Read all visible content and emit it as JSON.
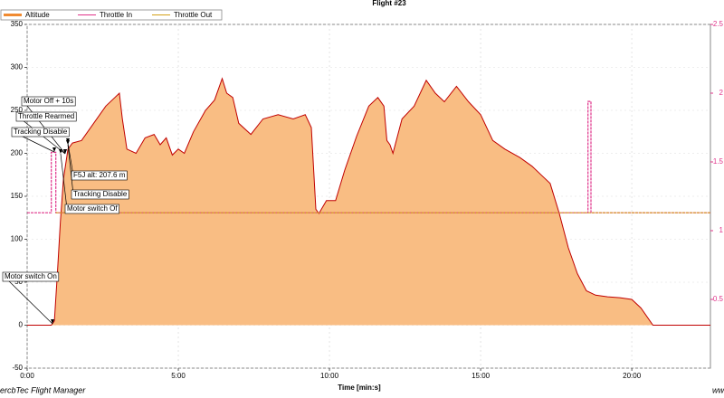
{
  "chart_data": {
    "type": "line",
    "title": "Flight #23",
    "xlabel": "Time [min:s]",
    "footer_left": "ercbTec Flight Manager",
    "footer_right": "ww",
    "xlim": [
      0,
      22.6
    ],
    "xticks": [
      {
        "value": 0,
        "label": "0:00"
      },
      {
        "value": 5,
        "label": "5:00"
      },
      {
        "value": 10,
        "label": "10:00"
      },
      {
        "value": 15,
        "label": "15:00"
      },
      {
        "value": 20,
        "label": "20:00"
      }
    ],
    "ylim": [
      -50,
      350
    ],
    "yticks": [
      -50,
      0,
      50,
      100,
      150,
      200,
      250,
      300,
      350
    ],
    "y2lim": [
      0,
      2.5
    ],
    "y2ticks": [
      0.5,
      1,
      1.5,
      2,
      2.5
    ],
    "grid": true,
    "series": [
      {
        "name": "Altitude",
        "color": "#c00000",
        "fill": "#f9bd83",
        "x": [
          0,
          0.8,
          0.9,
          1.0,
          1.1,
          1.2,
          1.35,
          1.5,
          1.8,
          2.2,
          2.6,
          2.9,
          3.05,
          3.15,
          3.3,
          3.6,
          3.9,
          4.2,
          4.4,
          4.6,
          4.8,
          5.0,
          5.2,
          5.5,
          5.9,
          6.2,
          6.45,
          6.6,
          6.8,
          7.0,
          7.4,
          7.8,
          8.3,
          8.8,
          9.2,
          9.4,
          9.55,
          9.65,
          9.9,
          10.2,
          10.5,
          10.9,
          11.3,
          11.6,
          11.8,
          11.9,
          12.0,
          12.1,
          12.4,
          12.8,
          13.2,
          13.5,
          13.8,
          14.2,
          14.6,
          15.0,
          15.4,
          15.8,
          16.3,
          16.7,
          17.0,
          17.3,
          17.6,
          17.9,
          18.2,
          18.5,
          18.8,
          19.2,
          19.6,
          20.0,
          20.3,
          20.7,
          22.6
        ],
        "values": [
          0,
          0,
          5,
          60,
          120,
          170,
          205,
          212,
          215,
          235,
          255,
          265,
          270,
          240,
          205,
          200,
          218,
          222,
          210,
          218,
          198,
          205,
          200,
          225,
          250,
          262,
          287,
          270,
          265,
          235,
          222,
          240,
          245,
          240,
          245,
          230,
          135,
          130,
          145,
          145,
          180,
          220,
          255,
          265,
          255,
          215,
          210,
          200,
          240,
          255,
          285,
          270,
          260,
          278,
          260,
          245,
          215,
          205,
          195,
          185,
          175,
          165,
          130,
          90,
          60,
          40,
          35,
          33,
          32,
          30,
          20,
          0,
          0
        ]
      },
      {
        "name": "Throttle In",
        "color": "#e0338a",
        "axis": "y2",
        "x": [
          0,
          0.8,
          0.8,
          0.95,
          0.95,
          18.55,
          18.55,
          18.65,
          18.65,
          22.6
        ],
        "values": [
          1.13,
          1.13,
          1.57,
          1.57,
          1.13,
          1.13,
          1.94,
          1.94,
          1.13,
          1.13
        ]
      },
      {
        "name": "Throttle Out",
        "color": "#d4a017",
        "axis": "y2",
        "x": [
          0.95,
          22.6
        ],
        "values": [
          1.13,
          1.13
        ]
      }
    ],
    "annotations": [
      "Motor Off + 10s",
      "Throttle Rearmed",
      "Tracking Disable",
      "F5J alt: 207.6 m",
      "Tracking Disable",
      "Motor switch Of",
      "Motor switch On"
    ]
  }
}
